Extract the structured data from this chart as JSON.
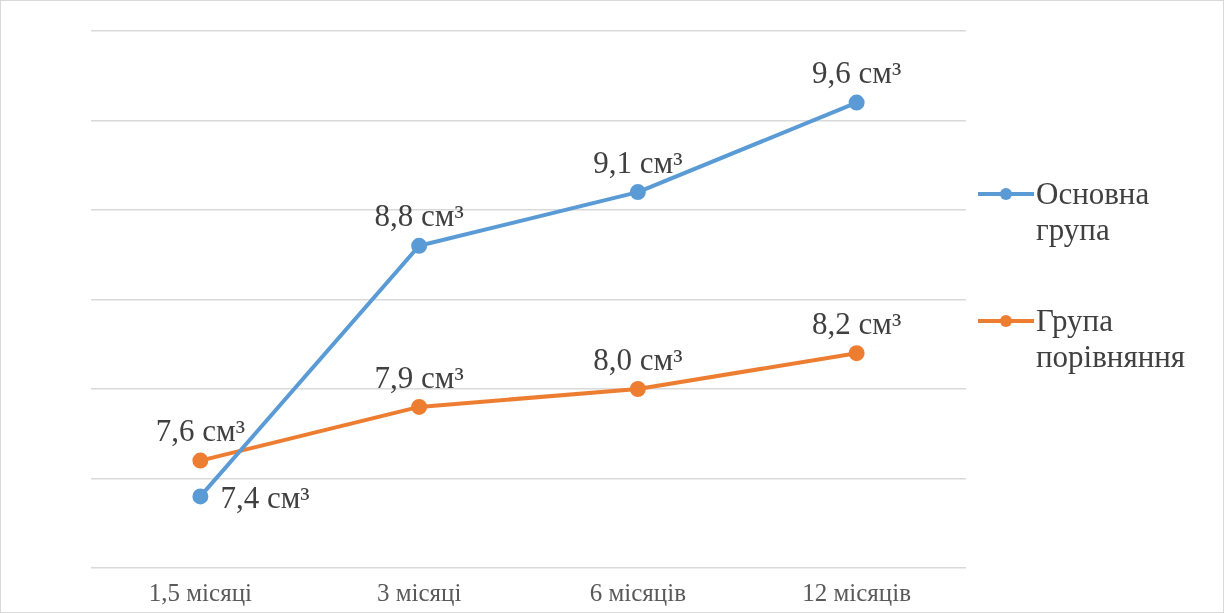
{
  "chart_data": {
    "type": "line",
    "categories": [
      "1,5 місяці",
      "3 місяці",
      "6 місяців",
      "12 місяців"
    ],
    "series": [
      {
        "name": "Основна група",
        "color": "#5b9bd5",
        "values": [
          7.4,
          8.8,
          9.1,
          9.6
        ],
        "value_labels": [
          "7,4 см³",
          "8,8 см³",
          "9,1 см³",
          "9,6 см³"
        ]
      },
      {
        "name": "Група порівняння",
        "color": "#ed7d31",
        "values": [
          7.6,
          7.9,
          8.0,
          8.2
        ],
        "value_labels": [
          "7,6 см³",
          "7,9 см³",
          "8,0 см³",
          "8,2 см³"
        ]
      }
    ],
    "ylim": [
      7,
      10
    ],
    "yticks": [
      {
        "value": 7,
        "label": null
      },
      {
        "value": 7.5,
        "label": null
      },
      {
        "value": 8,
        "label": null
      },
      {
        "value": 8.5,
        "label": null
      },
      {
        "value": 9,
        "label": null
      },
      {
        "value": 9.5,
        "label": null
      },
      {
        "value": 10,
        "label": null
      }
    ],
    "tick_labels": "x",
    "grid": "y",
    "legend": "right",
    "marker": "circle",
    "line_style": "solid"
  }
}
